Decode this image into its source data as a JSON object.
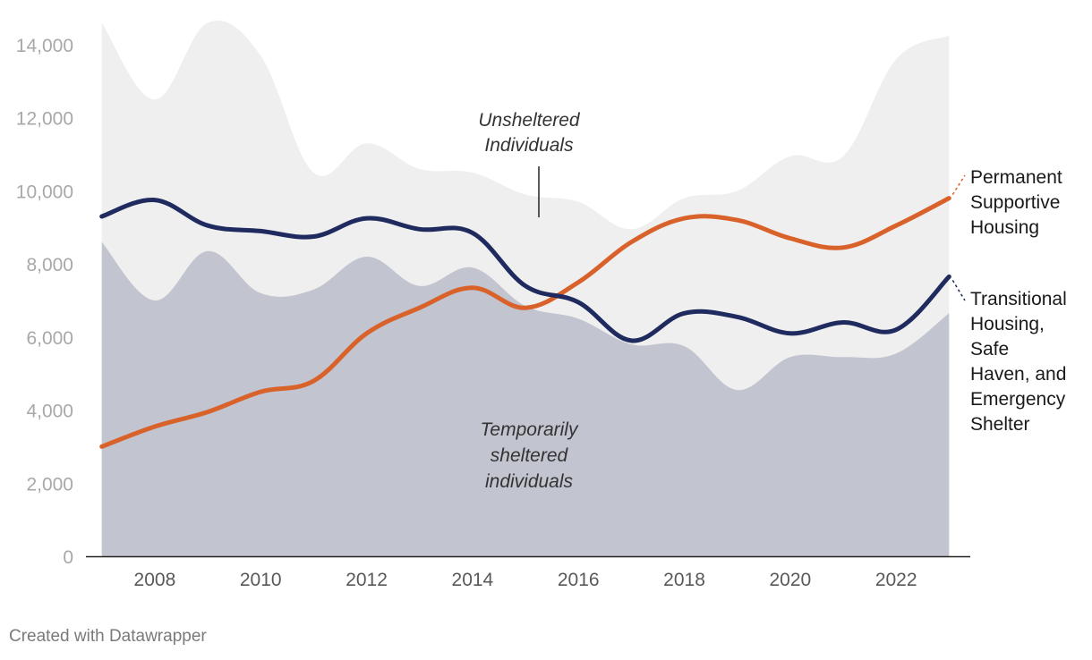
{
  "chart_data": {
    "type": "area",
    "x": [
      2007,
      2008,
      2009,
      2010,
      2011,
      2012,
      2013,
      2014,
      2015,
      2016,
      2017,
      2018,
      2019,
      2020,
      2021,
      2022,
      2023
    ],
    "ylim": [
      0,
      14000
    ],
    "xlim": [
      2006.7,
      2023.4
    ],
    "yticks": [
      0,
      2000,
      4000,
      6000,
      8000,
      10000,
      12000,
      14000
    ],
    "ytick_labels": [
      "0",
      "2,000",
      "4,000",
      "6,000",
      "8,000",
      "10,000",
      "12,000",
      "14,000"
    ],
    "xticks": [
      2008,
      2010,
      2012,
      2014,
      2016,
      2018,
      2020,
      2022
    ],
    "xtick_labels": [
      "2008",
      "2010",
      "2012",
      "2014",
      "2016",
      "2018",
      "2020",
      "2022"
    ],
    "areas": [
      {
        "name": "Unsheltered Individuals",
        "label_lines": [
          "Unsheltered",
          "Individuals"
        ],
        "color": "#efefef",
        "values": [
          14600,
          12500,
          14600,
          13700,
          10500,
          11300,
          10600,
          10500,
          9900,
          9700,
          8950,
          9800,
          10000,
          10950,
          10950,
          13600,
          14250
        ]
      },
      {
        "name": "Temporarily sheltered individuals",
        "label_lines": [
          "Temporarily",
          "sheltered",
          "individuals"
        ],
        "color": "#c2c4d0",
        "values": [
          8600,
          7000,
          8350,
          7200,
          7300,
          8200,
          7400,
          7900,
          6850,
          6500,
          5800,
          5750,
          4550,
          5450,
          5450,
          5550,
          6650
        ]
      }
    ],
    "series": [
      {
        "name": "Permanent Supportive Housing",
        "label_lines": [
          "Permanent",
          "Supportive",
          "Housing"
        ],
        "color": "#d9622b",
        "values": [
          3000,
          3550,
          3950,
          4500,
          4800,
          6100,
          6800,
          7350,
          6800,
          7500,
          8600,
          9250,
          9200,
          8700,
          8450,
          9050,
          9800
        ]
      },
      {
        "name": "Transitional Housing, Safe Haven, and Emergency Shelter",
        "label_lines": [
          "Transitional",
          "Housing,",
          "Safe",
          "Haven, and",
          "Emergency",
          "Shelter"
        ],
        "color": "#1f2a5e",
        "values": [
          9300,
          9750,
          9050,
          8900,
          8750,
          9250,
          8950,
          8850,
          7400,
          6950,
          5900,
          6650,
          6550,
          6100,
          6400,
          6200,
          7650
        ]
      }
    ]
  },
  "footer": {
    "credit": "Created with Datawrapper"
  }
}
